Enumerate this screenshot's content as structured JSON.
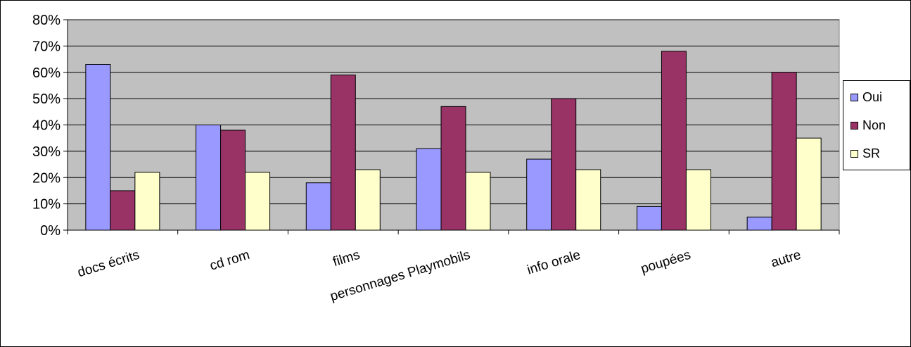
{
  "chart_data": {
    "type": "bar",
    "categories": [
      "docs écrits",
      "cd rom",
      "films",
      "personnages Playmobils",
      "info orale",
      "poupées",
      "autre"
    ],
    "series": [
      {
        "name": "Oui",
        "values": [
          63,
          40,
          18,
          31,
          27,
          9,
          5
        ],
        "color": "#9999ff"
      },
      {
        "name": "Non",
        "values": [
          15,
          38,
          59,
          47,
          50,
          68,
          60
        ],
        "color": "#993366"
      },
      {
        "name": "SR",
        "values": [
          22,
          22,
          23,
          22,
          23,
          23,
          35
        ],
        "color": "#ffffcc"
      }
    ],
    "y_ticks": [
      "0%",
      "10%",
      "20%",
      "30%",
      "40%",
      "50%",
      "60%",
      "70%",
      "80%"
    ],
    "ylim": [
      0,
      80
    ],
    "y_unit": "%",
    "grid": true,
    "legend_position": "right",
    "plot_background": "#c0c0c0"
  }
}
